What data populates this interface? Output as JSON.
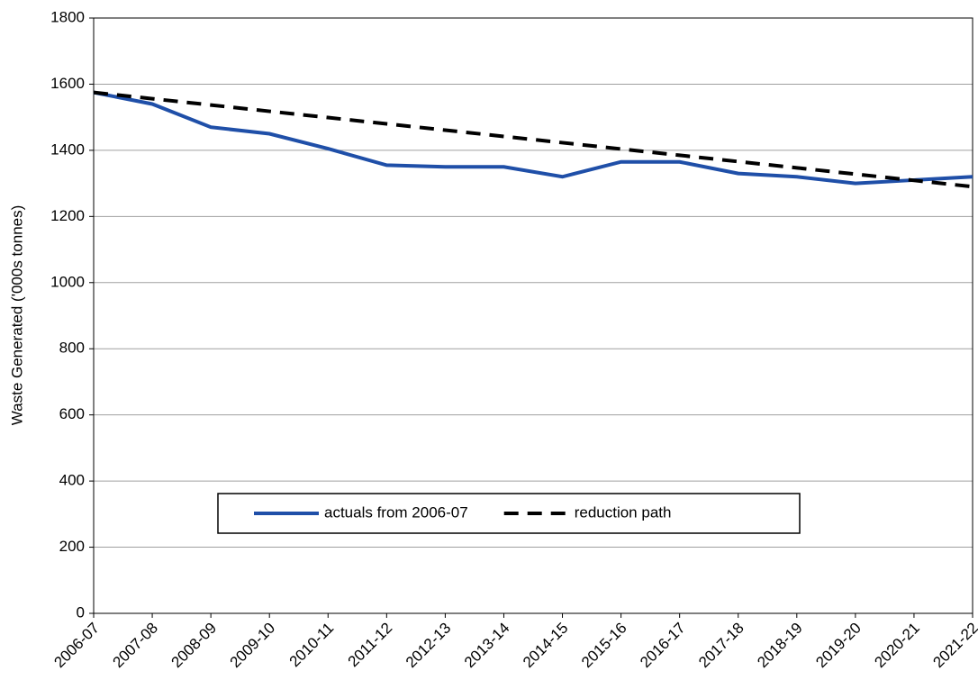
{
  "chart_data": {
    "type": "line",
    "y_label": "Waste Generated ('000s tonnes)",
    "categories": [
      "2006-07",
      "2007-08",
      "2008-09",
      "2009-10",
      "2010-11",
      "2011-12",
      "2012-13",
      "2013-14",
      "2014-15",
      "2015-16",
      "2016-17",
      "2017-18",
      "2018-19",
      "2019-20",
      "2020-21",
      "2021-22"
    ],
    "series": [
      {
        "name": "actuals from 2006-07",
        "color": "#1f4fa8",
        "line_style": "solid",
        "values": [
          1575,
          1540,
          1470,
          1450,
          1405,
          1355,
          1350,
          1350,
          1320,
          1365,
          1365,
          1330,
          1320,
          1300,
          1310,
          1320
        ]
      },
      {
        "name": "reduction path",
        "color": "#000000",
        "line_style": "dashed",
        "values": [
          1575,
          1556,
          1537,
          1518,
          1499,
          1480,
          1461,
          1442,
          1423,
          1404,
          1385,
          1366,
          1347,
          1328,
          1309,
          1290
        ]
      }
    ],
    "ylim": [
      0,
      1800
    ],
    "yticks": [
      0,
      200,
      400,
      600,
      800,
      1000,
      1200,
      1400,
      1600,
      1800
    ],
    "grid": true,
    "legend": "lower center"
  }
}
